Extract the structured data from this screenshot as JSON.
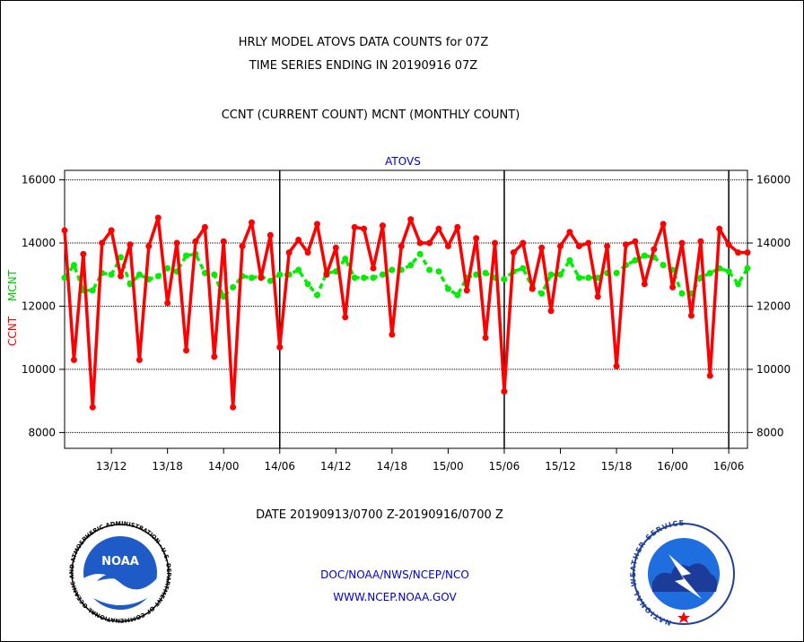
{
  "title_line1": "HRLY MODEL ATOVS DATA COUNTS for 07Z",
  "title_line2": "TIME SERIES ENDING IN 20190916 07Z",
  "title_line3": "CCNT (CURRENT COUNT) MCNT (MONTHLY COUNT)",
  "footer": {
    "date_range": "DATE 20190913/0700 Z-20190916/0700 Z",
    "org": "DOC/NOAA/NWS/NCEP/NCO",
    "url": "WWW.NCEP.NOAA.GOV",
    "noaa_logo_text": "NOAA",
    "noaa_ring_text": "NATIONAL OCEANIC AND ATMOSPHERIC ADMINISTRATION · U.S. DEPARTMENT OF COMMERCE ·",
    "nws_ring_text": "NATIONAL WEATHER SERVICE"
  },
  "colors": {
    "ccnt": "#ff0000",
    "mcnt": "#00ee00",
    "frame": "#000000",
    "footer_blue": "#0000cc",
    "date_red": "#ff0000"
  },
  "chart_data": {
    "type": "line",
    "title": "ATOVS",
    "ylabel_ccnt": "CCNT",
    "ylabel_mcnt": "MCNT",
    "ylim": [
      7500,
      16300
    ],
    "yticks": [
      8000,
      10000,
      12000,
      14000,
      16000
    ],
    "ytick_labels": [
      "8000",
      "10000",
      "12000",
      "14000",
      "16000"
    ],
    "xlim": [
      0,
      73
    ],
    "xticks": [
      5,
      11,
      17,
      23,
      29,
      35,
      41,
      47,
      53,
      59,
      65,
      71
    ],
    "xtick_labels": [
      "13/12",
      "13/18",
      "14/00",
      "14/06",
      "14/12",
      "14/18",
      "15/00",
      "15/06",
      "15/12",
      "15/18",
      "16/00",
      "16/06"
    ],
    "vlines": [
      23,
      47,
      71
    ],
    "grid": true,
    "x": [
      0,
      1,
      2,
      3,
      4,
      5,
      6,
      7,
      8,
      9,
      10,
      11,
      12,
      13,
      14,
      15,
      16,
      17,
      18,
      19,
      20,
      21,
      22,
      23,
      24,
      25,
      26,
      27,
      28,
      29,
      30,
      31,
      32,
      33,
      34,
      35,
      36,
      37,
      38,
      39,
      40,
      41,
      42,
      43,
      44,
      45,
      46,
      47,
      48,
      49,
      50,
      51,
      52,
      53,
      54,
      55,
      56,
      57,
      58,
      59,
      60,
      61,
      62,
      63,
      64,
      65,
      66,
      67,
      68,
      69,
      70,
      71,
      72,
      73
    ],
    "series": [
      {
        "name": "CCNT",
        "values": [
          14400,
          10300,
          13650,
          8800,
          14000,
          14400,
          12950,
          13950,
          10300,
          13900,
          14800,
          12100,
          14000,
          10600,
          14050,
          14500,
          10400,
          14050,
          8800,
          13900,
          14650,
          12900,
          14250,
          10700,
          13700,
          14100,
          13700,
          14600,
          13000,
          13850,
          11650,
          14500,
          14450,
          13200,
          14550,
          11100,
          13900,
          14750,
          14000,
          14000,
          14450,
          13900,
          14500,
          12500,
          14150,
          11000,
          14000,
          9300,
          13700,
          14000,
          12550,
          13850,
          11850,
          13900,
          14350,
          13900,
          14000,
          12300,
          13900,
          10100,
          13950,
          14050,
          12700,
          13800,
          14600,
          12600,
          14000,
          11700,
          14050,
          9800,
          14450,
          13950,
          13700,
          13700
        ]
      },
      {
        "name": "MCNT",
        "values": [
          12900,
          13300,
          12500,
          12500,
          13050,
          13000,
          13550,
          12700,
          13000,
          12850,
          12950,
          13200,
          13100,
          13600,
          13650,
          13050,
          13000,
          12300,
          12600,
          12950,
          12900,
          12950,
          12800,
          13000,
          13000,
          13150,
          12700,
          12350,
          13050,
          13100,
          13500,
          12900,
          12900,
          12900,
          13000,
          13150,
          13150,
          13300,
          13650,
          13150,
          13100,
          12550,
          12350,
          12900,
          13000,
          13050,
          12900,
          12850,
          13100,
          13200,
          12600,
          12400,
          13000,
          13000,
          13450,
          12900,
          12900,
          12900,
          13050,
          13050,
          13300,
          13450,
          13600,
          13550,
          13300,
          13150,
          12400,
          12400,
          12900,
          13050,
          13200,
          13100,
          12700,
          13200
        ]
      }
    ]
  }
}
